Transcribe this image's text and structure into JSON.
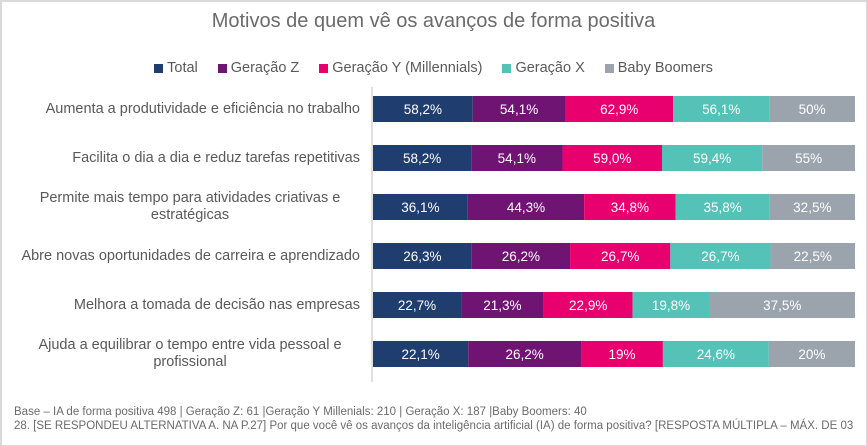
{
  "chart_data": {
    "type": "bar",
    "orientation": "horizontal",
    "stacked": "percent",
    "title": "Motivos de quem vê os avanços de forma positiva",
    "xlabel": "",
    "ylabel": "",
    "legend_position": "top",
    "grid": false,
    "categories": [
      "Aumenta a produtividade e eficiência no trabalho",
      "Facilita o dia a dia e reduz tarefas repetitivas",
      "Permite mais tempo para atividades criativas e estratégicas",
      "Abre novas oportunidades de carreira e aprendizado",
      "Melhora a tomada de decisão nas empresas",
      "Ajuda a equilibrar o tempo entre vida pessoal e profissional"
    ],
    "series": [
      {
        "name": "Total",
        "color": "#1f3d6e",
        "values": [
          58.2,
          58.2,
          36.1,
          26.3,
          22.7,
          22.1
        ],
        "labels": [
          "58,2%",
          "58,2%",
          "36,1%",
          "26,3%",
          "22,7%",
          "22,1%"
        ]
      },
      {
        "name": "Geração Z",
        "color": "#701474",
        "values": [
          54.1,
          54.1,
          44.3,
          26.2,
          21.3,
          26.2
        ],
        "labels": [
          "54,1%",
          "54,1%",
          "44,3%",
          "26,2%",
          "21,3%",
          "26,2%"
        ]
      },
      {
        "name": "Geração Y (Millennials)",
        "color": "#e8006f",
        "values": [
          62.9,
          59.0,
          34.8,
          26.7,
          22.9,
          19
        ],
        "labels": [
          "62,9%",
          "59,0%",
          "34,8%",
          "26,7%",
          "22,9%",
          "19%"
        ]
      },
      {
        "name": "Geração X",
        "color": "#55c2b8",
        "values": [
          56.1,
          59.4,
          35.8,
          26.7,
          19.8,
          24.6
        ],
        "labels": [
          "56,1%",
          "59,4%",
          "35,8%",
          "26,7%",
          "19,8%",
          "24,6%"
        ]
      },
      {
        "name": "Baby Boomers",
        "color": "#9ba3ad",
        "values": [
          50,
          55,
          32.5,
          22.5,
          37.5,
          20
        ],
        "labels": [
          "50%",
          "55%",
          "32,5%",
          "22,5%",
          "37,5%",
          "20%"
        ]
      }
    ]
  },
  "footer": {
    "base": "Base – IA de forma positiva 498 | Geração Z: 61 |Geração Y Millenials: 210 | Geração X: 187 |Baby Boomers: 40",
    "question": "28. [SE RESPONDEU ALTERNATIVA A. NA P.27] Por que você vê os avanços da inteligência artificial (IA) de forma positiva? [RESPOSTA MÚLTIPLA – MÁX. DE 03"
  }
}
